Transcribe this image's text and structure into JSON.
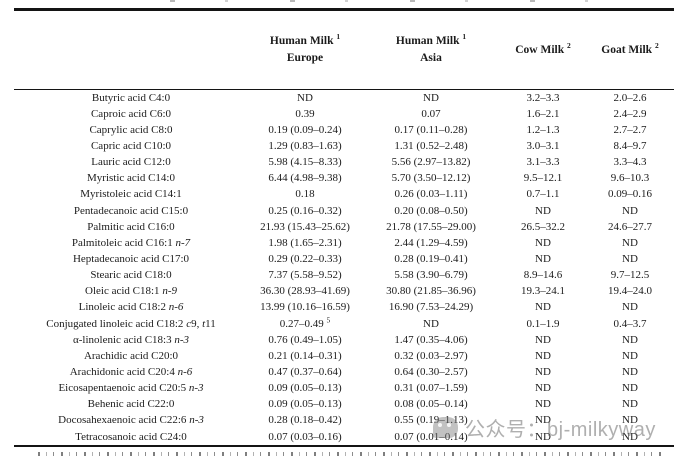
{
  "table": {
    "columns": [
      {
        "key": "fatty-acid",
        "line1": "",
        "line2": ""
      },
      {
        "key": "human-milk-europe",
        "line1": "Human Milk ^1",
        "line2": "Europe"
      },
      {
        "key": "human-milk-asia",
        "line1": "Human Milk ^1",
        "line2": "Asia"
      },
      {
        "key": "cow-milk",
        "line1": "Cow Milk ^2",
        "line2": ""
      },
      {
        "key": "goat-milk",
        "line1": "Goat Milk ^2",
        "line2": ""
      }
    ],
    "rows": [
      {
        "label": "Butyric acid C4:0",
        "values": [
          "ND",
          "ND",
          "3.2–3.3",
          "2.0–2.6"
        ]
      },
      {
        "label": "Caproic acid C6:0",
        "values": [
          "0.39",
          "0.07",
          "1.6–2.1",
          "2.4–2.9"
        ]
      },
      {
        "label": "Caprylic acid C8:0",
        "values": [
          "0.19 (0.09–0.24)",
          "0.17 (0.11–0.28)",
          "1.2–1.3",
          "2.7–2.7"
        ]
      },
      {
        "label": "Capric acid C10:0",
        "values": [
          "1.29 (0.83–1.63)",
          "1.31 (0.52–2.48)",
          "3.0–3.1",
          "8.4–9.7"
        ]
      },
      {
        "label": "Lauric acid C12:0",
        "values": [
          "5.98 (4.15–8.33)",
          "5.56 (2.97–13.82)",
          "3.1–3.3",
          "3.3–4.3"
        ]
      },
      {
        "label": "Myristic acid C14:0",
        "values": [
          "6.44 (4.98–9.38)",
          "5.70 (3.50–12.12)",
          "9.5–12.1",
          "9.6–10.3"
        ]
      },
      {
        "label": "Myristoleic acid C14:1",
        "values": [
          "0.18",
          "0.26 (0.03–1.11)",
          "0.7–1.1",
          "0.09–0.16"
        ]
      },
      {
        "label": "Pentadecanoic acid C15:0",
        "values": [
          "0.25 (0.16–0.32)",
          "0.20 (0.08–0.50)",
          "ND",
          "ND"
        ]
      },
      {
        "label": "Palmitic acid C16:0",
        "values": [
          "21.93 (15.43–25.62)",
          "21.78 (17.55–29.00)",
          "26.5–32.2",
          "24.6–27.7"
        ]
      },
      {
        "label": "Palmitoleic acid C16:1 *n-7*",
        "values": [
          "1.98 (1.65–2.31)",
          "2.44 (1.29–4.59)",
          "ND",
          "ND"
        ]
      },
      {
        "label": "Heptadecanoic acid C17:0",
        "values": [
          "0.29 (0.22–0.33)",
          "0.28 (0.19–0.41)",
          "ND",
          "ND"
        ]
      },
      {
        "label": "Stearic acid C18:0",
        "values": [
          "7.37 (5.58–9.52)",
          "5.58 (3.90–6.79)",
          "8.9–14.6",
          "9.7–12.5"
        ]
      },
      {
        "label": "Oleic acid C18:1 *n-9*",
        "values": [
          "36.30 (28.93–41.69)",
          "30.80 (21.85–36.96)",
          "19.3–24.1",
          "19.4–24.0"
        ]
      },
      {
        "label": "Linoleic acid C18:2 *n-6*",
        "values": [
          "13.99 (10.16–16.59)",
          "16.90 (7.53–24.29)",
          "ND",
          "ND"
        ]
      },
      {
        "label": "Conjugated linoleic acid C18:2 *c*9, *t*11",
        "values": [
          "0.27–0.49 ^5",
          "ND",
          "0.1–1.9",
          "0.4–3.7"
        ]
      },
      {
        "label": "α-linolenic acid C18:3 *n-3*",
        "values": [
          "0.76 (0.49–1.05)",
          "1.47 (0.35–4.06)",
          "ND",
          "ND"
        ]
      },
      {
        "label": "Arachidic acid C20:0",
        "values": [
          "0.21 (0.14–0.31)",
          "0.32 (0.03–2.97)",
          "ND",
          "ND"
        ]
      },
      {
        "label": "Arachidonic acid C20:4 *n-6*",
        "values": [
          "0.47 (0.37–0.64)",
          "0.64 (0.30–2.57)",
          "ND",
          "ND"
        ]
      },
      {
        "label": "Eicosapentaenoic acid C20:5 *n-3*",
        "values": [
          "0.09 (0.05–0.13)",
          "0.31 (0.07–1.59)",
          "ND",
          "ND"
        ]
      },
      {
        "label": "Behenic acid C22:0",
        "values": [
          "0.09 (0.05–0.13)",
          "0.08 (0.05–0.14)",
          "ND",
          "ND"
        ]
      },
      {
        "label": "Docosahexaenoic acid C22:6 *n-3*",
        "values": [
          "0.28 (0.18–0.42)",
          "0.55 (0.19–1.13)",
          "ND",
          "ND"
        ]
      },
      {
        "label": "Tetracosanoic acid C24:0",
        "values": [
          "0.07 (0.03–0.16)",
          "0.07 (0.01–0.14)",
          "ND",
          "ND"
        ]
      }
    ]
  },
  "watermark": {
    "icon": "wechat-official-account-icon",
    "text": "公众号：bj-milkyway",
    "color": "#9a9a9a"
  },
  "colors": {
    "background": "#ffffff",
    "text": "#1b1b1b",
    "rule": "#141414"
  }
}
